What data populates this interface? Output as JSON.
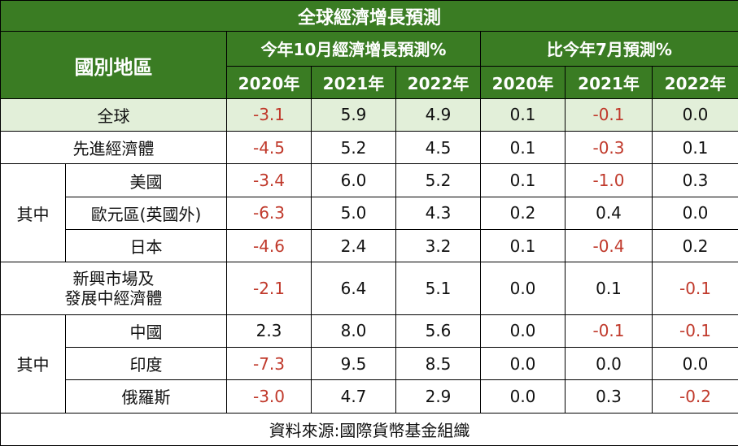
{
  "title": "全球經濟增長預測",
  "header": {
    "region": "國別地區",
    "group_oct": "今年10月經濟增長預測%",
    "group_diff": "比今年7月預測%",
    "years": [
      "2020年",
      "2021年",
      "2022年",
      "2020年",
      "2021年",
      "2022年"
    ]
  },
  "rows": [
    {
      "label": "全球",
      "values": [
        "-3.1",
        "5.9",
        "4.9",
        "0.1",
        "-0.1",
        "0.0"
      ]
    },
    {
      "label": "先進經濟體",
      "values": [
        "-4.5",
        "5.2",
        "4.5",
        "0.1",
        "-0.3",
        "0.1"
      ]
    },
    {
      "group": "其中",
      "label": "美國",
      "values": [
        "-3.4",
        "6.0",
        "5.2",
        "0.1",
        "-1.0",
        "0.3"
      ]
    },
    {
      "label": "歐元區(英國外)",
      "values": [
        "-6.3",
        "5.0",
        "4.3",
        "0.2",
        "0.4",
        "0.0"
      ]
    },
    {
      "label": "日本",
      "values": [
        "-4.6",
        "2.4",
        "3.2",
        "0.1",
        "-0.4",
        "0.2"
      ]
    },
    {
      "label_line1": "新興市場及",
      "label_line2": "發展中經濟體",
      "values": [
        "-2.1",
        "6.4",
        "5.1",
        "0.0",
        "0.1",
        "-0.1"
      ]
    },
    {
      "group": "其中",
      "label": "中國",
      "values": [
        "2.3",
        "8.0",
        "5.6",
        "0.0",
        "-0.1",
        "-0.1"
      ]
    },
    {
      "label": "印度",
      "values": [
        "-7.3",
        "9.5",
        "8.5",
        "0.0",
        "0.0",
        "0.0"
      ]
    },
    {
      "label": "俄羅斯",
      "values": [
        "-3.0",
        "4.7",
        "2.9",
        "0.0",
        "0.3",
        "-0.2"
      ]
    }
  ],
  "source": "資料來源:國際貨幣基金組織",
  "colors": {
    "header_green": "#3a7c23",
    "world_row": "#e2efd9",
    "negative": "#c0392b"
  }
}
